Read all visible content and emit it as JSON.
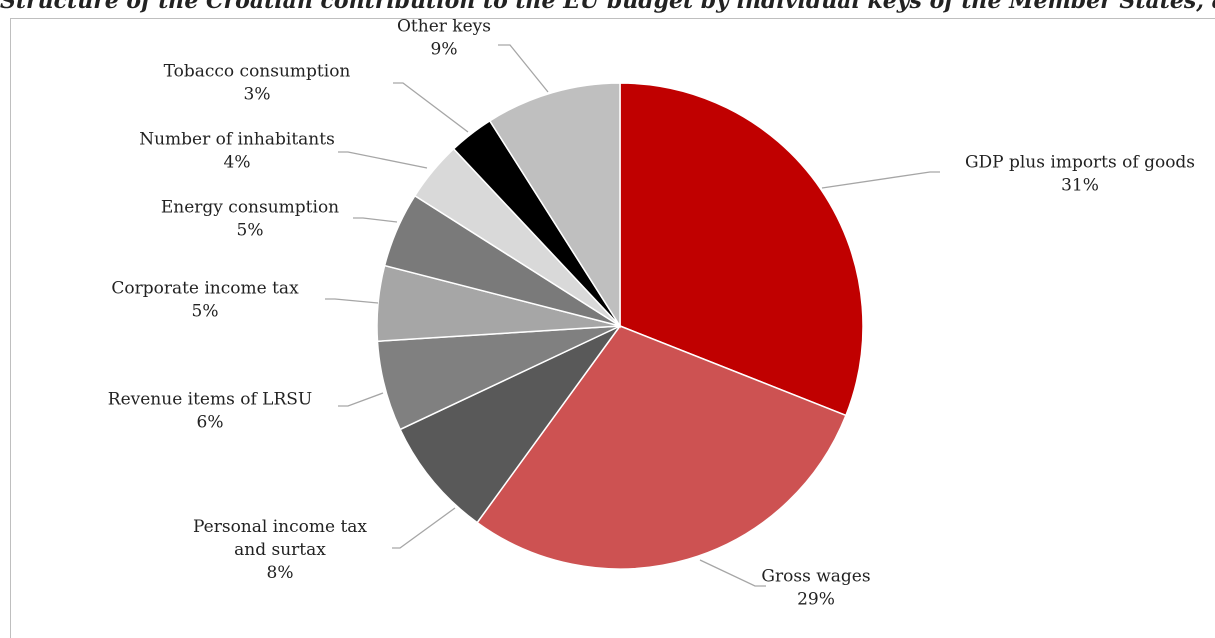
{
  "chart_data": {
    "type": "pie",
    "title": "Structure of the Croatian contribution to the EU budget by individual keys of the Member States, according to the financial plan",
    "slices": [
      {
        "label": "GDP plus imports of goods",
        "value": 31,
        "value_label": "31%",
        "color": "#c00000"
      },
      {
        "label": "Gross wages",
        "value": 29,
        "value_label": "29%",
        "color": "#cd5252"
      },
      {
        "label": "Personal income tax and surtax",
        "label_lines": [
          "Personal income tax",
          "and surtax"
        ],
        "value": 8,
        "value_label": "8%",
        "color": "#595959"
      },
      {
        "label": "Revenue items of LRSU",
        "value": 6,
        "value_label": "6%",
        "color": "#808080"
      },
      {
        "label": "Corporate income tax",
        "value": 5,
        "value_label": "5%",
        "color": "#a6a6a6"
      },
      {
        "label": "Energy consumption",
        "value": 5,
        "value_label": "5%",
        "color": "#7a7a7a"
      },
      {
        "label": "Number of inhabitants",
        "value": 4,
        "value_label": "4%",
        "color": "#d9d9d9"
      },
      {
        "label": "Tobacco consumption",
        "value": 3,
        "value_label": "3%",
        "color": "#000000"
      },
      {
        "label": "Other keys",
        "value": 9,
        "value_label": "9%",
        "color": "#bfbfbf"
      }
    ],
    "legend": "none",
    "labels": "outside-with-leader-lines"
  }
}
